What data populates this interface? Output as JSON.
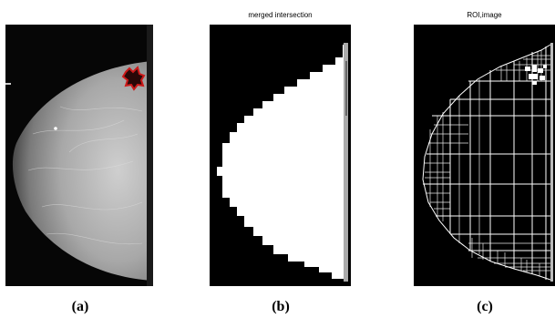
{
  "figure": {
    "panels": [
      {
        "title": "",
        "caption": "(a)",
        "content": "mammogram-image"
      },
      {
        "title": "merged intersection",
        "caption": "(b)",
        "content": "binary-mask-image"
      },
      {
        "title": "ROI,image",
        "caption": "(c)",
        "content": "roi-quadtree-image"
      }
    ],
    "colors": {
      "background": "#ffffff",
      "image_background": "#000000",
      "mask": "#ffffff",
      "lesion_outline": "#cc1a1a"
    }
  }
}
